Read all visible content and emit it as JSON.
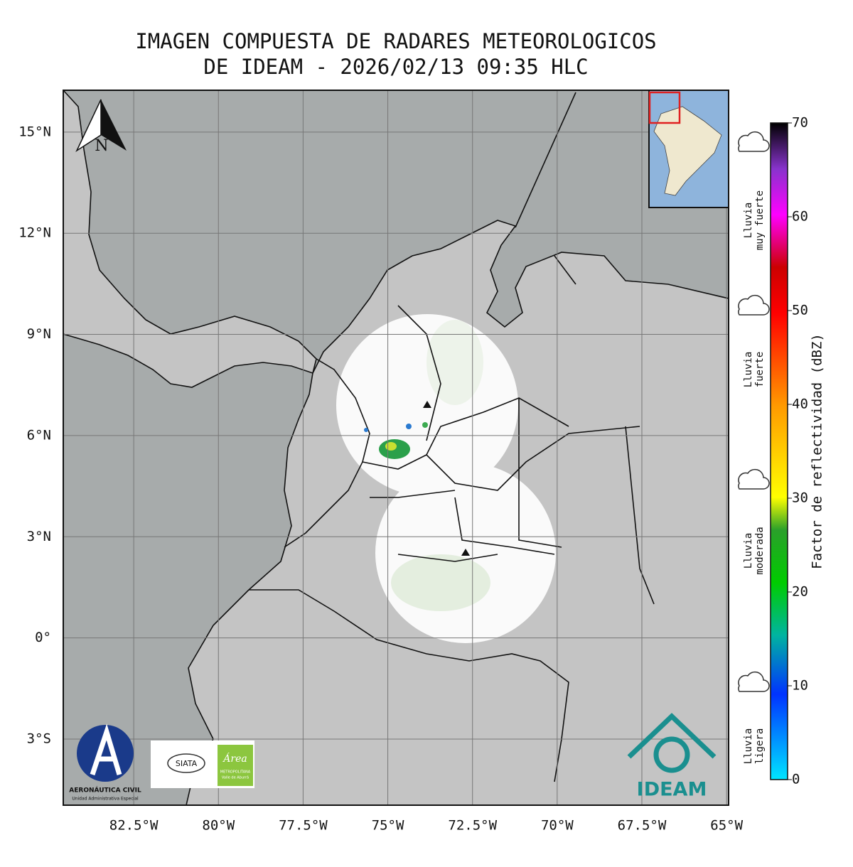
{
  "map": {
    "title_lines": [
      "IMAGEN COMPUESTA DE RADARES METEOROLOGICOS",
      "DE IDEAM - 2026/02/13 09:35 HLC"
    ],
    "xlim": [
      -84.58,
      -64.94
    ],
    "ylim": [
      -4.96,
      16.24
    ],
    "lon_ticks": [
      {
        "value": -82.5,
        "label": "82.5°W"
      },
      {
        "value": -80,
        "label": "80°W"
      },
      {
        "value": -77.5,
        "label": "77.5°W"
      },
      {
        "value": -75,
        "label": "75°W"
      },
      {
        "value": -72.5,
        "label": "72.5°W"
      },
      {
        "value": -70,
        "label": "70°W"
      },
      {
        "value": -67.5,
        "label": "67.5°W"
      },
      {
        "value": -65,
        "label": "65°W"
      }
    ],
    "lat_ticks": [
      {
        "value": 15,
        "label": "15°N"
      },
      {
        "value": 12,
        "label": "12°N"
      },
      {
        "value": 9,
        "label": "9°N"
      },
      {
        "value": 6,
        "label": "6°N"
      },
      {
        "value": 3,
        "label": "3°N"
      },
      {
        "value": 0,
        "label": "0°"
      },
      {
        "value": -3,
        "label": "3°S"
      }
    ],
    "north_label": "N",
    "colorbar": {
      "label": "Factor de reflectividad (dBZ)",
      "ticks": [
        0,
        10,
        20,
        30,
        40,
        50,
        60,
        70
      ]
    },
    "rain_categories": [
      {
        "lines": [
          "Lluvia",
          "muy fuerte"
        ]
      },
      {
        "lines": [
          "Lluvia",
          "fuerte"
        ]
      },
      {
        "lines": [
          "Lluvia",
          "moderada"
        ]
      },
      {
        "lines": [
          "Lluvia",
          "ligera"
        ]
      }
    ],
    "logos": {
      "aerocivil": [
        "AERONÁUTICA CIVIL",
        "Unidad Administrativa Especial"
      ],
      "siata": "SIATA",
      "area": [
        "Área",
        "METROPOLITANA",
        "Valle de Aburrá"
      ],
      "ideam": "IDEAM"
    }
  }
}
